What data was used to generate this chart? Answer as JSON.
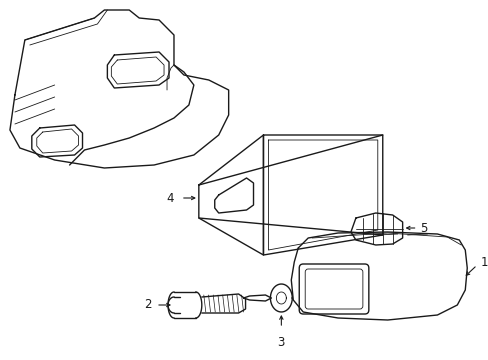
{
  "background_color": "#ffffff",
  "line_color": "#1a1a1a",
  "line_width": 1.0,
  "thin_lw": 0.6,
  "label_fontsize": 8.5
}
